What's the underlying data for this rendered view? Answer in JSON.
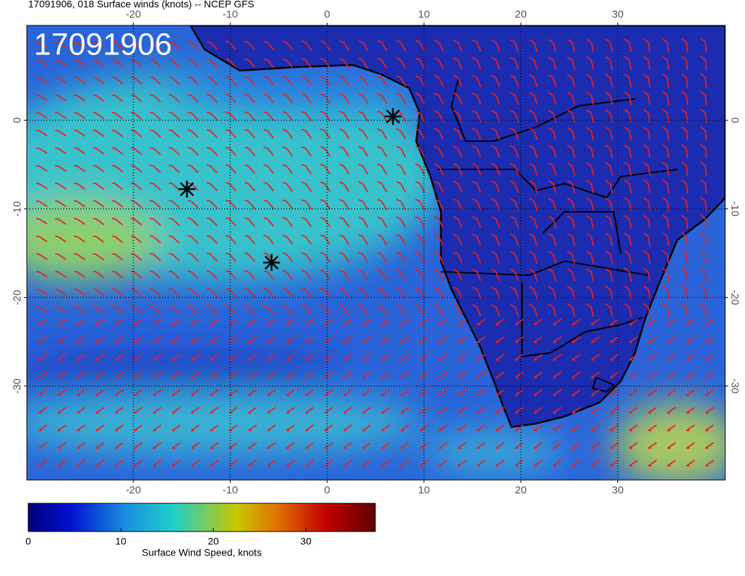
{
  "map": {
    "title": "17091906, 018 Surface winds (knots) -- NCEP GFS",
    "stamp": "17091906",
    "xlim": [
      -31,
      41.1
    ],
    "ylim": [
      -40.6,
      10.7
    ],
    "xticks": [
      -20,
      -10,
      0,
      10,
      20,
      30
    ],
    "yticks": [
      0,
      -10,
      -20,
      -30
    ],
    "colorbar": {
      "label": "Surface Wind Speed, knots",
      "lim": [
        0,
        37.5
      ],
      "ticks": [
        0,
        10,
        20,
        30
      ]
    }
  }
}
